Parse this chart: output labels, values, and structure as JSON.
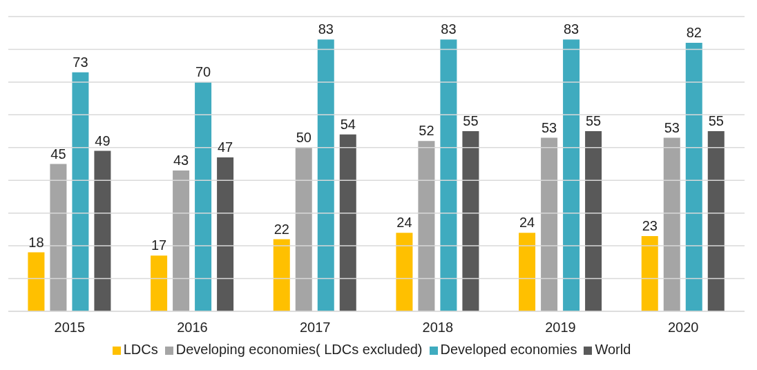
{
  "chart_data": {
    "type": "bar",
    "categories": [
      "2015",
      "2016",
      "2017",
      "2018",
      "2019",
      "2020"
    ],
    "series": [
      {
        "name": "LDCs",
        "color": "#ffc000",
        "values": [
          18,
          17,
          22,
          24,
          24,
          23
        ]
      },
      {
        "name": "Developing economies( LDCs excluded)",
        "color": "#a5a5a5",
        "values": [
          45,
          43,
          50,
          52,
          53,
          53
        ]
      },
      {
        "name": "Developed economies",
        "color": "#3fabbf",
        "values": [
          73,
          70,
          83,
          83,
          83,
          82
        ]
      },
      {
        "name": "World",
        "color": "#595959",
        "values": [
          49,
          47,
          54,
          55,
          55,
          55
        ]
      }
    ],
    "ylim": [
      0,
      90
    ],
    "yticks": [
      {
        "value": 0,
        "label": null
      },
      {
        "value": 10,
        "label": null
      },
      {
        "value": 20,
        "label": null
      },
      {
        "value": 30,
        "label": null
      },
      {
        "value": 40,
        "label": null
      },
      {
        "value": 50,
        "label": null
      },
      {
        "value": 60,
        "label": null
      },
      {
        "value": 70,
        "label": null
      },
      {
        "value": 80,
        "label": null
      },
      {
        "value": 90,
        "label": null
      }
    ],
    "tick_labels": "x",
    "grid": "y",
    "legend": "bottom",
    "data_labels": true
  }
}
